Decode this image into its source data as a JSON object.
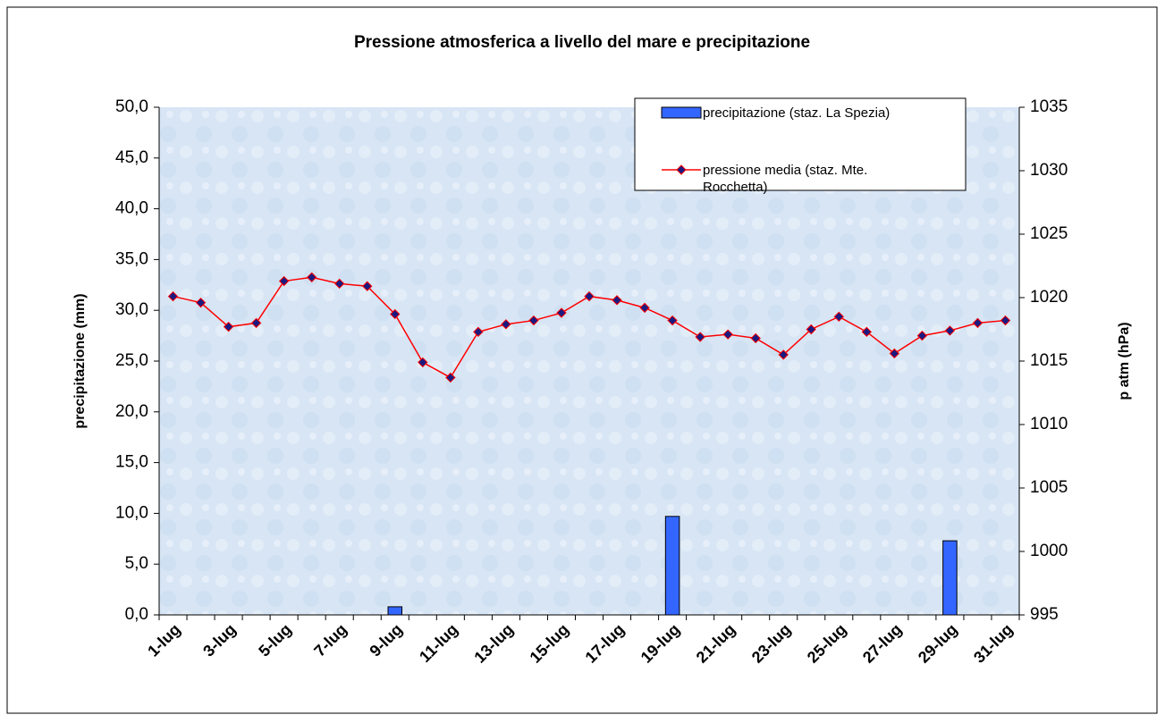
{
  "chart_data": {
    "type": "bar+line",
    "title": "Pressione atmosferica a livello del mare e precipitazione",
    "y_label": "precipitazione (mm)",
    "y2_label": "p atm (hPa)",
    "categories": [
      "1-lug",
      null,
      "3-lug",
      null,
      "5-lug",
      null,
      "7-lug",
      null,
      "9-lug",
      null,
      "11-lug",
      null,
      "13-lug",
      null,
      "15-lug",
      null,
      "17-lug",
      null,
      "19-lug",
      null,
      "21-lug",
      null,
      "23-lug",
      null,
      "25-lug",
      null,
      "27-lug",
      null,
      "29-lug",
      null,
      "31-lug"
    ],
    "series": [
      {
        "name": "precipitazione (staz. La Spezia)",
        "type": "bar",
        "color": "#3366ff",
        "values": [
          0,
          0,
          0,
          0,
          0,
          0,
          0,
          0,
          0.8,
          0,
          0,
          0,
          0,
          0,
          0,
          0,
          0,
          0,
          9.7,
          0,
          0,
          0,
          0,
          0,
          0,
          0,
          0,
          0,
          7.3,
          0,
          0
        ]
      },
      {
        "name": "pressione media (staz. Mte. Rocchetta)",
        "type": "line",
        "axis": "y2",
        "color": "#ff0000",
        "marker_color": "#1a1a80",
        "values": [
          1020.1,
          1019.6,
          1017.7,
          1018.0,
          1021.3,
          1021.6,
          1021.1,
          1020.9,
          1018.7,
          1014.9,
          1013.7,
          1017.3,
          1017.9,
          1018.2,
          1018.8,
          1020.1,
          1019.8,
          1019.2,
          1018.2,
          1016.9,
          1017.1,
          1016.8,
          1015.5,
          1017.5,
          1018.5,
          1017.3,
          1015.6,
          1017.0,
          1017.4,
          1018.0,
          1018.2
        ]
      }
    ],
    "ylim": [
      0,
      50
    ],
    "yticks": [
      {
        "value": 0,
        "label": "0,0"
      },
      {
        "value": 5,
        "label": "5,0"
      },
      {
        "value": 10,
        "label": "10,0"
      },
      {
        "value": 15,
        "label": "15,0"
      },
      {
        "value": 20,
        "label": "20,0"
      },
      {
        "value": 25,
        "label": "25,0"
      },
      {
        "value": 30,
        "label": "30,0"
      },
      {
        "value": 35,
        "label": "35,0"
      },
      {
        "value": 40,
        "label": "40,0"
      },
      {
        "value": 45,
        "label": "45,0"
      },
      {
        "value": 50,
        "label": "50,0"
      }
    ],
    "y2lim": [
      995,
      1035
    ],
    "y2ticks": [
      995,
      1000,
      1005,
      1010,
      1015,
      1020,
      1025,
      1030,
      1035
    ],
    "grid": false,
    "legend": "top-right"
  }
}
